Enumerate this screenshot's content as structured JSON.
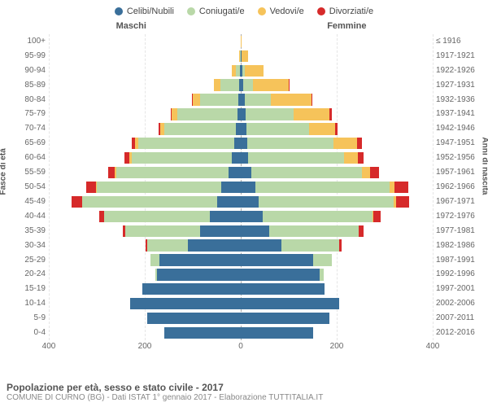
{
  "legend": {
    "items": [
      {
        "label": "Celibi/Nubili",
        "color": "#3a6f9a"
      },
      {
        "label": "Coniugati/e",
        "color": "#b9d8a8"
      },
      {
        "label": "Vedovi/e",
        "color": "#f6c35a"
      },
      {
        "label": "Divorziati/e",
        "color": "#d62a2a"
      }
    ]
  },
  "headers": {
    "left": "Maschi",
    "right": "Femmine"
  },
  "axis_labels": {
    "left": "Fasce di età",
    "right": "Anni di nascita"
  },
  "chart": {
    "type": "population-pyramid",
    "max_value": 400,
    "x_ticks": [
      400,
      200,
      0,
      200,
      400
    ],
    "grid_positions": [
      -400,
      -200,
      200,
      400
    ],
    "background_color": "#ffffff",
    "grid_color": "#e5e5e5",
    "center_color": "#aaaaaa",
    "series_colors": {
      "single": "#3a6f9a",
      "married": "#b9d8a8",
      "widowed": "#f6c35a",
      "divorced": "#d62a2a"
    },
    "label_fontsize": 10,
    "rows": [
      {
        "age": "0-4",
        "birth": "2012-2016",
        "m": {
          "single": 160,
          "married": 0,
          "widowed": 0,
          "divorced": 0
        },
        "f": {
          "single": 150,
          "married": 0,
          "widowed": 0,
          "divorced": 0
        }
      },
      {
        "age": "5-9",
        "birth": "2007-2011",
        "m": {
          "single": 195,
          "married": 0,
          "widowed": 0,
          "divorced": 0
        },
        "f": {
          "single": 185,
          "married": 0,
          "widowed": 0,
          "divorced": 0
        }
      },
      {
        "age": "10-14",
        "birth": "2002-2006",
        "m": {
          "single": 230,
          "married": 0,
          "widowed": 0,
          "divorced": 0
        },
        "f": {
          "single": 205,
          "married": 0,
          "widowed": 0,
          "divorced": 0
        }
      },
      {
        "age": "15-19",
        "birth": "1997-2001",
        "m": {
          "single": 205,
          "married": 0,
          "widowed": 0,
          "divorced": 0
        },
        "f": {
          "single": 175,
          "married": 0,
          "widowed": 0,
          "divorced": 0
        }
      },
      {
        "age": "20-24",
        "birth": "1992-1996",
        "m": {
          "single": 175,
          "married": 3,
          "widowed": 0,
          "divorced": 0
        },
        "f": {
          "single": 165,
          "married": 8,
          "widowed": 0,
          "divorced": 0
        }
      },
      {
        "age": "25-29",
        "birth": "1987-1991",
        "m": {
          "single": 170,
          "married": 18,
          "widowed": 0,
          "divorced": 0
        },
        "f": {
          "single": 150,
          "married": 40,
          "widowed": 0,
          "divorced": 0
        }
      },
      {
        "age": "30-34",
        "birth": "1982-1986",
        "m": {
          "single": 110,
          "married": 85,
          "widowed": 0,
          "divorced": 3
        },
        "f": {
          "single": 85,
          "married": 120,
          "widowed": 0,
          "divorced": 5
        }
      },
      {
        "age": "35-39",
        "birth": "1977-1981",
        "m": {
          "single": 85,
          "married": 155,
          "widowed": 0,
          "divorced": 6
        },
        "f": {
          "single": 60,
          "married": 185,
          "widowed": 1,
          "divorced": 10
        }
      },
      {
        "age": "40-44",
        "birth": "1972-1976",
        "m": {
          "single": 65,
          "married": 220,
          "widowed": 0,
          "divorced": 10
        },
        "f": {
          "single": 45,
          "married": 230,
          "widowed": 2,
          "divorced": 15
        }
      },
      {
        "age": "45-49",
        "birth": "1967-1971",
        "m": {
          "single": 50,
          "married": 280,
          "widowed": 1,
          "divorced": 22
        },
        "f": {
          "single": 38,
          "married": 280,
          "widowed": 5,
          "divorced": 28
        }
      },
      {
        "age": "50-54",
        "birth": "1962-1966",
        "m": {
          "single": 40,
          "married": 260,
          "widowed": 2,
          "divorced": 20
        },
        "f": {
          "single": 30,
          "married": 280,
          "widowed": 10,
          "divorced": 30
        }
      },
      {
        "age": "55-59",
        "birth": "1957-1961",
        "m": {
          "single": 25,
          "married": 235,
          "widowed": 3,
          "divorced": 14
        },
        "f": {
          "single": 22,
          "married": 230,
          "widowed": 18,
          "divorced": 18
        }
      },
      {
        "age": "60-64",
        "birth": "1952-1956",
        "m": {
          "single": 18,
          "married": 210,
          "widowed": 4,
          "divorced": 10
        },
        "f": {
          "single": 16,
          "married": 200,
          "widowed": 28,
          "divorced": 12
        }
      },
      {
        "age": "65-69",
        "birth": "1947-1951",
        "m": {
          "single": 14,
          "married": 200,
          "widowed": 6,
          "divorced": 8
        },
        "f": {
          "single": 14,
          "married": 180,
          "widowed": 48,
          "divorced": 10
        }
      },
      {
        "age": "70-74",
        "birth": "1942-1946",
        "m": {
          "single": 10,
          "married": 150,
          "widowed": 8,
          "divorced": 4
        },
        "f": {
          "single": 12,
          "married": 130,
          "widowed": 55,
          "divorced": 5
        }
      },
      {
        "age": "75-79",
        "birth": "1937-1941",
        "m": {
          "single": 7,
          "married": 125,
          "widowed": 12,
          "divorced": 2
        },
        "f": {
          "single": 10,
          "married": 100,
          "widowed": 75,
          "divorced": 4
        }
      },
      {
        "age": "80-84",
        "birth": "1932-1936",
        "m": {
          "single": 5,
          "married": 80,
          "widowed": 15,
          "divorced": 1
        },
        "f": {
          "single": 8,
          "married": 55,
          "widowed": 85,
          "divorced": 2
        }
      },
      {
        "age": "85-89",
        "birth": "1927-1931",
        "m": {
          "single": 3,
          "married": 40,
          "widowed": 13,
          "divorced": 0
        },
        "f": {
          "single": 5,
          "married": 20,
          "widowed": 75,
          "divorced": 1
        }
      },
      {
        "age": "90-94",
        "birth": "1922-1926",
        "m": {
          "single": 1,
          "married": 10,
          "widowed": 8,
          "divorced": 0
        },
        "f": {
          "single": 3,
          "married": 5,
          "widowed": 40,
          "divorced": 0
        }
      },
      {
        "age": "95-99",
        "birth": "1917-1921",
        "m": {
          "single": 0,
          "married": 2,
          "widowed": 2,
          "divorced": 0
        },
        "f": {
          "single": 1,
          "married": 1,
          "widowed": 13,
          "divorced": 0
        }
      },
      {
        "age": "100+",
        "birth": "≤ 1916",
        "m": {
          "single": 0,
          "married": 0,
          "widowed": 0,
          "divorced": 0
        },
        "f": {
          "single": 0,
          "married": 0,
          "widowed": 2,
          "divorced": 0
        }
      }
    ]
  },
  "footer": {
    "title": "Popolazione per età, sesso e stato civile - 2017",
    "subtitle": "COMUNE DI CURNO (BG) - Dati ISTAT 1° gennaio 2017 - Elaborazione TUTTITALIA.IT"
  }
}
